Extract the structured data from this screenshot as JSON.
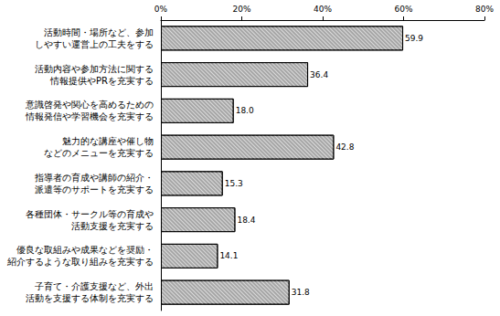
{
  "chart_data": {
    "type": "bar",
    "orientation": "horizontal",
    "categories": [
      "活動時間・場所など、参加\nしやすい運営上の工夫をする",
      "活動内容や参加方法に関する\n情報提供やPRを充実する",
      "意識啓発や関心を高めるための\n情報発信や学習機会を充実する",
      "魅力的な講座や催し物\nなどのメニューを充実する",
      "指導者の育成や講師の紹介・\n派遣等のサポートを充実する",
      "各種団体・サークル等の育成や\n活動支援を充実する",
      "優良な取組みや成果などを奨励・\n紹介するような取り組みを充実する",
      "子育て・介護支援など、外出\n活動を支援する体制を充実する"
    ],
    "values": [
      59.9,
      36.4,
      18.0,
      42.8,
      15.3,
      18.4,
      14.1,
      31.8
    ],
    "value_labels": [
      "59.9",
      "36.4",
      "18.0",
      "42.8",
      "15.3",
      "18.4",
      "14.1",
      "31.8"
    ],
    "data_labels": true,
    "color": "#a6a6a6",
    "xlim": [
      0,
      80
    ],
    "xticks": [
      {
        "value": 0,
        "label": "0%"
      },
      {
        "value": 20,
        "label": "20%"
      },
      {
        "value": 40,
        "label": "40%"
      },
      {
        "value": 60,
        "label": "60%"
      },
      {
        "value": 80,
        "label": "80%"
      }
    ],
    "grid": false
  }
}
